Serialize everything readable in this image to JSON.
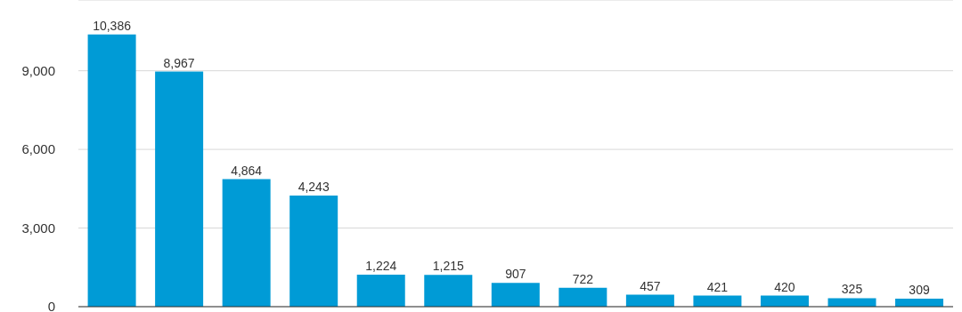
{
  "chart_data": {
    "type": "bar",
    "categories": [
      null,
      null,
      null,
      null,
      null,
      null,
      null,
      null,
      null,
      null,
      null,
      null,
      null
    ],
    "values": [
      10386,
      8967,
      4864,
      4243,
      1224,
      1215,
      907,
      722,
      457,
      421,
      420,
      325,
      309
    ],
    "value_labels": [
      "10,386",
      "8,967",
      "4,864",
      "4,243",
      "1,224",
      "1,215",
      "907",
      "722",
      "457",
      "421",
      "420",
      "325",
      "309"
    ],
    "color": "#009bd6",
    "ylim": [
      0,
      11700
    ],
    "yticks": [
      0,
      {
        "value": 3000,
        "label": "3,000"
      },
      {
        "value": 6000,
        "label": "6,000"
      },
      {
        "value": 9000,
        "label": "9,000"
      }
    ],
    "grid": "y"
  }
}
